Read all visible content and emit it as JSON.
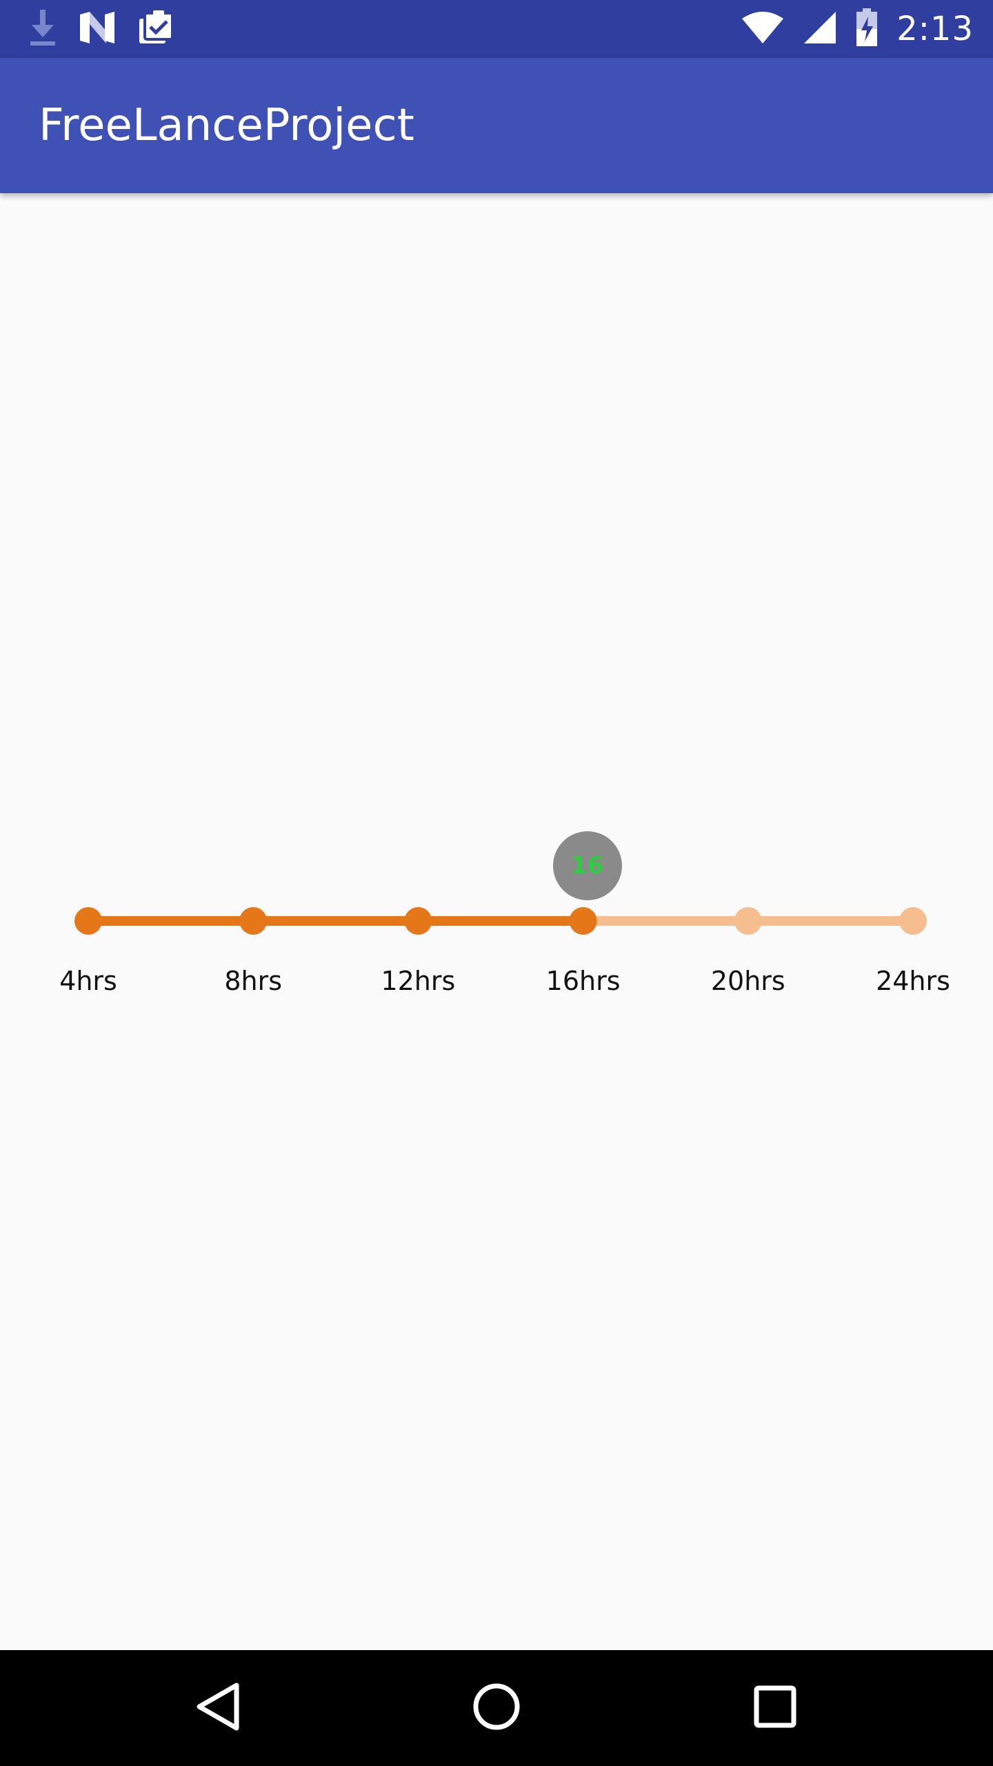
{
  "status_bar": {
    "time": "2:13",
    "icons_left": [
      "download-icon",
      "n-preview-icon",
      "clipboard-check-icon"
    ],
    "icons_right": [
      "wifi-icon",
      "cell-signal-icon",
      "battery-charging-icon"
    ],
    "background": "#303F9F"
  },
  "app_bar": {
    "title": "FreeLanceProject",
    "background": "#3F51B5"
  },
  "seekbar": {
    "value": 16,
    "value_label": "16",
    "value_color": "#2ECC40",
    "bubble_color": "#8A8A8A",
    "active_color": "#E67718",
    "inactive_color": "#F6BE8E",
    "steps": [
      {
        "value": 4,
        "label": "4hrs"
      },
      {
        "value": 8,
        "label": "8hrs"
      },
      {
        "value": 12,
        "label": "12hrs"
      },
      {
        "value": 16,
        "label": "16hrs"
      },
      {
        "value": 20,
        "label": "20hrs"
      },
      {
        "value": 24,
        "label": "24hrs"
      }
    ]
  },
  "nav_bar": {
    "buttons": [
      "back-icon",
      "home-icon",
      "recents-icon"
    ]
  }
}
